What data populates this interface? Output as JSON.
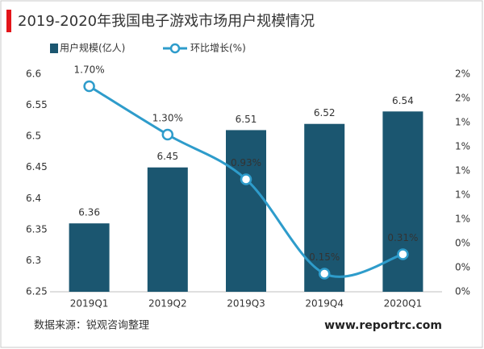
{
  "chart_data": {
    "type": "bar",
    "title": "2019-2020年我国电子游戏市场用户规模情况",
    "categories": [
      "2019Q1",
      "2019Q2",
      "2019Q3",
      "2019Q4",
      "2020Q1"
    ],
    "series": [
      {
        "name": "用户规模(亿人)",
        "color": "#1b5670",
        "values": [
          6.36,
          6.45,
          6.51,
          6.52,
          6.54
        ]
      },
      {
        "name": "环比增长(%)",
        "color": "#2e9ccb",
        "type": "line",
        "axis": "y2",
        "values": [
          1.7,
          1.3,
          0.93,
          0.15,
          0.31
        ],
        "value_labels": [
          "1.70%",
          "1.30%",
          "0.93%",
          "0.15%",
          "0.31%"
        ]
      }
    ],
    "ylim": [
      6.25,
      6.6
    ],
    "yticks": [
      6.25,
      6.3,
      6.35,
      6.4,
      6.45,
      6.5,
      6.55,
      6.6
    ],
    "y2lim": [
      0,
      1.8
    ],
    "y2ticks": [
      {
        "value": 0,
        "label": "0%"
      },
      {
        "value": 0.2,
        "label": "0%"
      },
      {
        "value": 0.4,
        "label": "0%"
      },
      {
        "value": 0.6,
        "label": "1%"
      },
      {
        "value": 0.8,
        "label": "1%"
      },
      {
        "value": 1.0,
        "label": "1%"
      },
      {
        "value": 1.2,
        "label": "1%"
      },
      {
        "value": 1.4,
        "label": "1%"
      },
      {
        "value": 1.6,
        "label": "2%"
      },
      {
        "value": 1.8,
        "label": "2%"
      }
    ],
    "grid": false,
    "source": "数据来源：锐观咨询整理",
    "website": "www.reportrc.com"
  }
}
